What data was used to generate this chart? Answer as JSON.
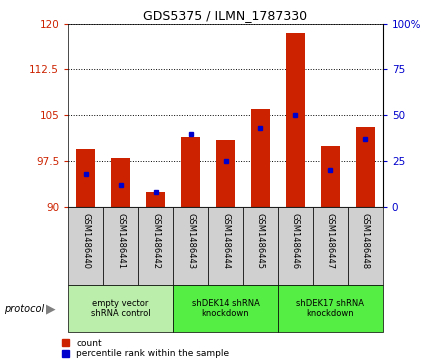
{
  "title": "GDS5375 / ILMN_1787330",
  "samples": [
    "GSM1486440",
    "GSM1486441",
    "GSM1486442",
    "GSM1486443",
    "GSM1486444",
    "GSM1486445",
    "GSM1486446",
    "GSM1486447",
    "GSM1486448"
  ],
  "bar_bottoms": [
    90,
    90,
    90,
    90,
    90,
    90,
    90,
    90,
    90
  ],
  "bar_tops": [
    99.5,
    98.0,
    92.5,
    101.5,
    101.0,
    106.0,
    118.5,
    100.0,
    103.0
  ],
  "percentile_values": [
    18,
    12,
    8,
    40,
    25,
    43,
    50,
    20,
    37
  ],
  "ylim_left": [
    90,
    120
  ],
  "yticks_left": [
    90,
    97.5,
    105,
    112.5,
    120
  ],
  "ylim_right": [
    0,
    100
  ],
  "yticks_right": [
    0,
    25,
    50,
    75,
    100
  ],
  "bar_color": "#cc2200",
  "dot_color": "#0000cc",
  "left_tick_color": "#cc2200",
  "right_tick_color": "#0000cc",
  "title_color": "#000000",
  "groups": [
    {
      "label": "empty vector\nshRNA control",
      "start": 0,
      "end": 3,
      "color": "#bbeeaa"
    },
    {
      "label": "shDEK14 shRNA\nknockdown",
      "start": 3,
      "end": 6,
      "color": "#55ee44"
    },
    {
      "label": "shDEK17 shRNA\nknockdown",
      "start": 6,
      "end": 9,
      "color": "#55ee44"
    }
  ],
  "protocol_label": "protocol",
  "legend_count_label": "count",
  "legend_percentile_label": "percentile rank within the sample",
  "bar_width": 0.55,
  "sample_box_color": "#d0d0d0",
  "plot_bg_color": "#ffffff"
}
